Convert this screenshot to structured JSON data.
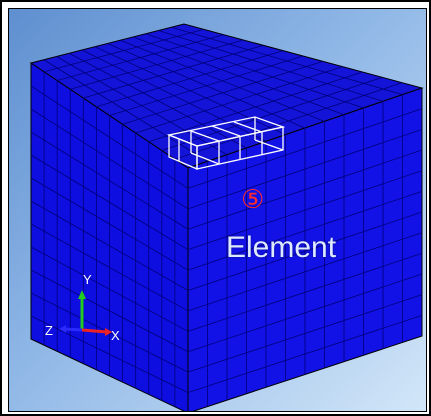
{
  "viewport": {
    "annotation_number": "⑤",
    "annotation_label": "Element",
    "triad": {
      "x_label": "X",
      "y_label": "Y",
      "z_label": "Z"
    }
  },
  "colors": {
    "mesh_fill": "#1010e8",
    "mesh_top": "#1a1ad4",
    "mesh_lines": "#000080",
    "highlight": "#ffffff",
    "annotation": "#ff2a2a"
  }
}
